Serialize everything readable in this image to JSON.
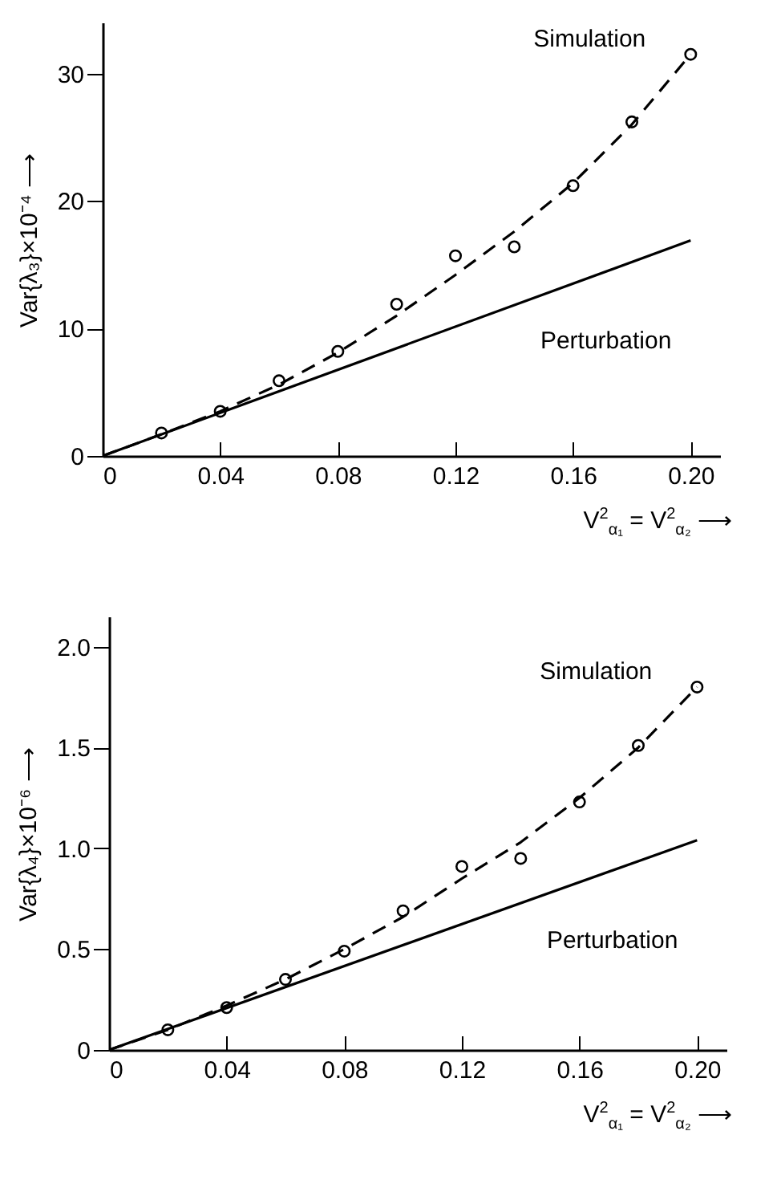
{
  "chart_data": [
    {
      "type": "line",
      "xlabel": "V$^{2}$$_{α₁}$ = V$^{2}$$_{α₂}$ ⟶",
      "ylabel": "Var{λ₃}×10⁻⁴ ⟶",
      "xlim": [
        0,
        0.21
      ],
      "ylim": [
        0,
        34
      ],
      "xticks": [
        0,
        0.04,
        0.08,
        0.12,
        0.16,
        {
          "value": 0.2,
          "label": "0.20"
        }
      ],
      "yticks": [
        0,
        10,
        20,
        30
      ],
      "series": [
        {
          "type": "scatter",
          "marker": "circle",
          "color": "#000000",
          "x": [
            0.02,
            0.04,
            0.06,
            0.08,
            0.1,
            0.12,
            0.14,
            0.16,
            0.18,
            0.2
          ],
          "values": [
            1.8,
            3.5,
            5.9,
            8.2,
            11.9,
            15.7,
            16.4,
            21.2,
            26.2,
            31.5
          ]
        },
        {
          "name": "Simulation",
          "line_style": "dashed",
          "color": "#000000",
          "x": [
            0,
            0.02,
            0.04,
            0.06,
            0.08,
            0.1,
            0.12,
            0.14,
            0.16,
            0.18,
            0.2
          ],
          "values": [
            0,
            1.7,
            3.5,
            5.6,
            8.1,
            11,
            14.2,
            17.6,
            21.4,
            26,
            31.5
          ]
        },
        {
          "name": "Perturbation",
          "line_style": "solid",
          "color": "#000000",
          "x": [
            0,
            0.2
          ],
          "values": [
            0,
            16.9
          ]
        }
      ]
    },
    {
      "type": "line",
      "xlabel": "V$^{2}$$_{α₁}$ = V$^{2}$$_{α₂}$ ⟶",
      "ylabel": "Var{λ₄}×10⁻⁶ ⟶",
      "xlim": [
        0,
        0.21
      ],
      "ylim": [
        0,
        2.15
      ],
      "xticks": [
        0,
        0.04,
        0.08,
        0.12,
        0.16,
        {
          "value": 0.2,
          "label": "0.20"
        }
      ],
      "yticks": [
        0,
        0.5,
        {
          "value": 1,
          "label": "1.0"
        },
        1.5,
        {
          "value": 2,
          "label": "2.0"
        }
      ],
      "series": [
        {
          "type": "scatter",
          "marker": "circle",
          "color": "#000000",
          "x": [
            0.02,
            0.04,
            0.06,
            0.08,
            0.1,
            0.12,
            0.14,
            0.16,
            0.18,
            0.2
          ],
          "values": [
            0.1,
            0.21,
            0.35,
            0.49,
            0.69,
            0.91,
            0.95,
            1.23,
            1.51,
            1.8
          ]
        },
        {
          "name": "Simulation",
          "line_style": "dashed",
          "color": "#000000",
          "x": [
            0,
            0.02,
            0.04,
            0.06,
            0.08,
            0.1,
            0.12,
            0.14,
            0.16,
            0.18,
            0.2
          ],
          "values": [
            0,
            0.1,
            0.22,
            0.35,
            0.5,
            0.66,
            0.85,
            1.03,
            1.25,
            1.5,
            1.8
          ]
        },
        {
          "name": "Perturbation",
          "line_style": "solid",
          "color": "#000000",
          "x": [
            0,
            0.2
          ],
          "values": [
            0,
            1.04
          ]
        }
      ]
    }
  ]
}
